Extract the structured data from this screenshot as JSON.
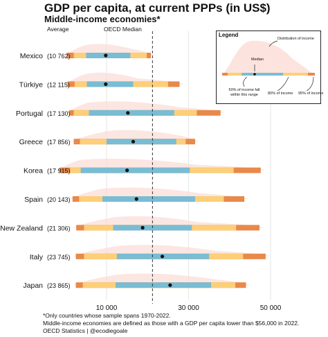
{
  "title": "GDP per capita, at current PPPs (in US$)",
  "subtitle": "Middle-income economies*",
  "header": {
    "average": "Average",
    "median": "OECD Median"
  },
  "footnotes": [
    "*Only countries whose sample spans 1970-2022.",
    "Middle-income economies are defined as those with a GDP per capita lower than $56,000 in 2022.",
    "OECD Statistics | @ecodiegoale"
  ],
  "legend": {
    "title": "Legend",
    "distribution": "Distribution of income",
    "median": "Median",
    "p50": "50% of income fall within this range",
    "p80": "80% of income",
    "p95": "95% of income"
  },
  "colors": {
    "p95": "#e8894a",
    "p80": "#fccf78",
    "p50": "#79bcd4",
    "distribution": "#fbdcd5",
    "median_dot": "#111111",
    "oecd_line": "#333333"
  },
  "chart_data": {
    "type": "boxplot-distribution",
    "title": "GDP per capita, at current PPPs (in US$)",
    "subtitle": "Middle-income economies*",
    "x_ticks": [
      10000,
      30000,
      50000
    ],
    "x_tick_labels": [
      "10 000",
      "30 000",
      "50 000"
    ],
    "xlim": [
      -6000,
      56000
    ],
    "oecd_median": 21200,
    "grid": true,
    "legend_position": "top-right",
    "series": [
      {
        "country": "Mexico",
        "average_label": "(10 762)",
        "p2_5": 300,
        "p10": 2000,
        "p25": 5000,
        "median": 9800,
        "p75": 15800,
        "p90": 19800,
        "p97_5": 20800
      },
      {
        "country": "Türkiye",
        "average_label": "(12 115)",
        "p2_5": 500,
        "p10": 2200,
        "p25": 5200,
        "median": 9800,
        "p75": 16500,
        "p90": 25000,
        "p97_5": 27800
      },
      {
        "country": "Portugal",
        "average_label": "(17 130)",
        "p2_5": 900,
        "p10": 2000,
        "p25": 5700,
        "median": 15200,
        "p75": 26500,
        "p90": 32000,
        "p97_5": 37800
      },
      {
        "country": "Greece",
        "average_label": "(17 856)",
        "p2_5": 2000,
        "p10": 3500,
        "p25": 10000,
        "median": 16500,
        "p75": 27000,
        "p90": 29300,
        "p97_5": 31600
      },
      {
        "country": "Korea",
        "average_label": "(17 915)",
        "p2_5": -1500,
        "p10": 1100,
        "p25": 3700,
        "median": 15000,
        "p75": 30300,
        "p90": 41000,
        "p97_5": 47600
      },
      {
        "country": "Spain",
        "average_label": "(20 143)",
        "p2_5": 1700,
        "p10": 3300,
        "p25": 9000,
        "median": 17300,
        "p75": 31600,
        "p90": 38600,
        "p97_5": 43600
      },
      {
        "country": "New Zealand",
        "average_label": "(21 306)",
        "p2_5": 2600,
        "p10": 4500,
        "p25": 11600,
        "median": 18800,
        "p75": 30800,
        "p90": 41600,
        "p97_5": 47300
      },
      {
        "country": "Italy",
        "average_label": "(23 745)",
        "p2_5": 2500,
        "p10": 4500,
        "p25": 12500,
        "median": 23600,
        "p75": 35000,
        "p90": 43300,
        "p97_5": 48800
      },
      {
        "country": "Japan",
        "average_label": "(23 865)",
        "p2_5": 2500,
        "p10": 4200,
        "p25": 12200,
        "median": 25500,
        "p75": 35500,
        "p90": 41400,
        "p97_5": 44000
      }
    ]
  }
}
